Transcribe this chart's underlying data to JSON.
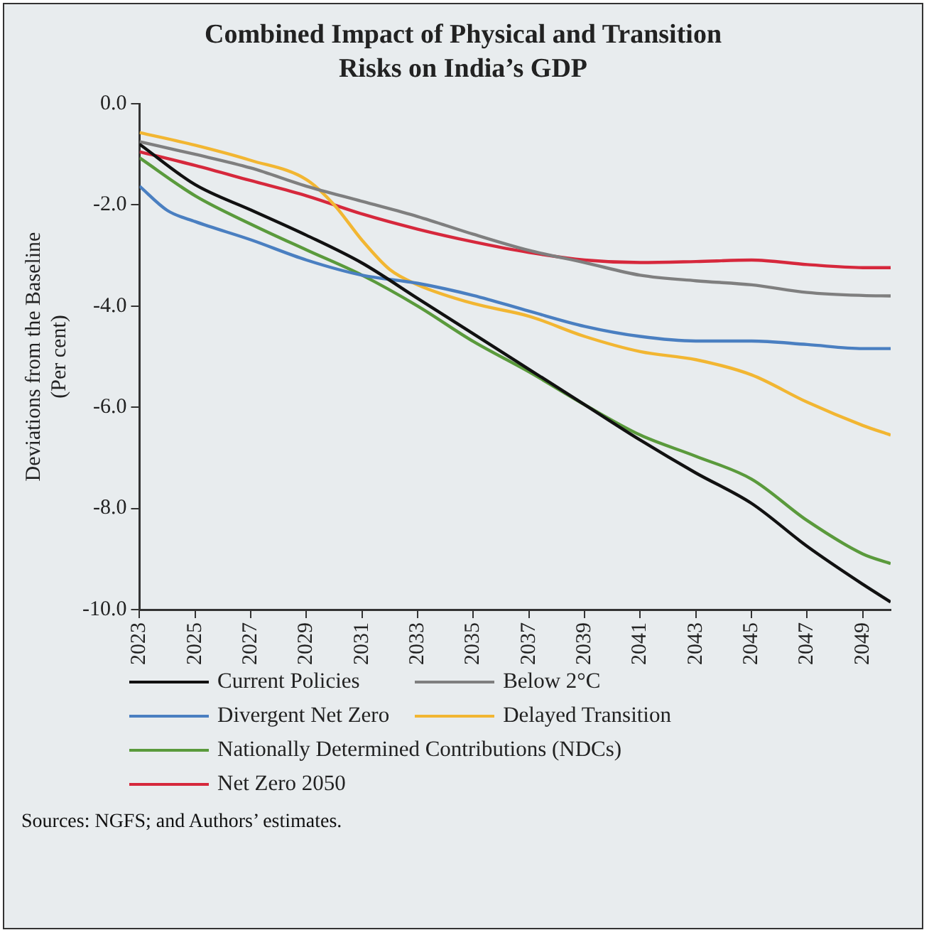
{
  "chart_data": {
    "type": "line",
    "title": "Combined Impact of Physical and Transition\nRisks on India’s GDP",
    "ylabel": "Deviations from the Baseline\n(Per cent)",
    "x": [
      2023,
      2025,
      2027,
      2029,
      2031,
      2033,
      2035,
      2037,
      2039,
      2041,
      2043,
      2045,
      2047,
      2049,
      2050
    ],
    "xlim": [
      2023,
      2050
    ],
    "xticks": [
      2023,
      2025,
      2027,
      2029,
      2031,
      2033,
      2035,
      2037,
      2039,
      2041,
      2043,
      2045,
      2047,
      2049
    ],
    "ylim": [
      -10,
      0
    ],
    "yticks": [
      {
        "value": 0,
        "label": "0.0"
      },
      {
        "value": -2,
        "label": "-2.0"
      },
      {
        "value": -4,
        "label": "-4.0"
      },
      {
        "value": -6,
        "label": "-6.0"
      },
      {
        "value": -8,
        "label": "-8.0"
      },
      {
        "value": -10,
        "label": "-10.0"
      }
    ],
    "series": [
      {
        "name": "Current Policies",
        "color": "#111111",
        "values": [
          -0.8,
          -1.6,
          -2.1,
          -2.6,
          -3.15,
          -3.85,
          -4.55,
          -5.25,
          -5.95,
          -6.65,
          -7.3,
          -7.9,
          -8.75,
          -9.5,
          -9.85
        ]
      },
      {
        "name": "Below 2°C",
        "color": "#7f7f7f",
        "values": [
          -0.75,
          -1.0,
          -1.27,
          -1.63,
          -1.93,
          -2.23,
          -2.58,
          -2.9,
          -3.14,
          -3.39,
          -3.5,
          -3.58,
          -3.73,
          -3.79,
          -3.8
        ]
      },
      {
        "name": "Divergent Net Zero",
        "color": "#4a7fc1",
        "x": [
          2023,
          2024,
          2025,
          2027,
          2029,
          2031,
          2033,
          2035,
          2037,
          2039,
          2041,
          2043,
          2045,
          2047,
          2049,
          2050
        ],
        "values": [
          -1.63,
          -2.11,
          -2.33,
          -2.69,
          -3.09,
          -3.39,
          -3.55,
          -3.79,
          -4.1,
          -4.4,
          -4.6,
          -4.69,
          -4.69,
          -4.76,
          -4.84,
          -4.84
        ]
      },
      {
        "name": "Delayed Transition",
        "color": "#f2b632",
        "x": [
          2023,
          2025,
          2027,
          2029,
          2030,
          2031,
          2032,
          2033,
          2035,
          2037,
          2039,
          2041,
          2043,
          2045,
          2047,
          2049,
          2050
        ],
        "values": [
          -0.57,
          -0.82,
          -1.12,
          -1.5,
          -2.0,
          -2.7,
          -3.28,
          -3.58,
          -3.95,
          -4.2,
          -4.6,
          -4.9,
          -5.06,
          -5.36,
          -5.9,
          -6.36,
          -6.55
        ]
      },
      {
        "name": "Nationally Determined Contributions (NDCs)",
        "color": "#5a9a3c",
        "values": [
          -1.07,
          -1.82,
          -2.38,
          -2.89,
          -3.39,
          -4.0,
          -4.7,
          -5.3,
          -5.95,
          -6.55,
          -6.97,
          -7.42,
          -8.24,
          -8.9,
          -9.09
        ]
      },
      {
        "name": "Net Zero 2050",
        "color": "#d6283c",
        "values": [
          -0.95,
          -1.22,
          -1.52,
          -1.82,
          -2.18,
          -2.48,
          -2.73,
          -2.94,
          -3.09,
          -3.14,
          -3.12,
          -3.09,
          -3.18,
          -3.24,
          -3.24
        ]
      }
    ],
    "legend": "bottom",
    "grid": false,
    "marker": "none",
    "line_style": "solid",
    "annotations": [
      "Sources: NGFS; and Authors’ estimates."
    ]
  }
}
